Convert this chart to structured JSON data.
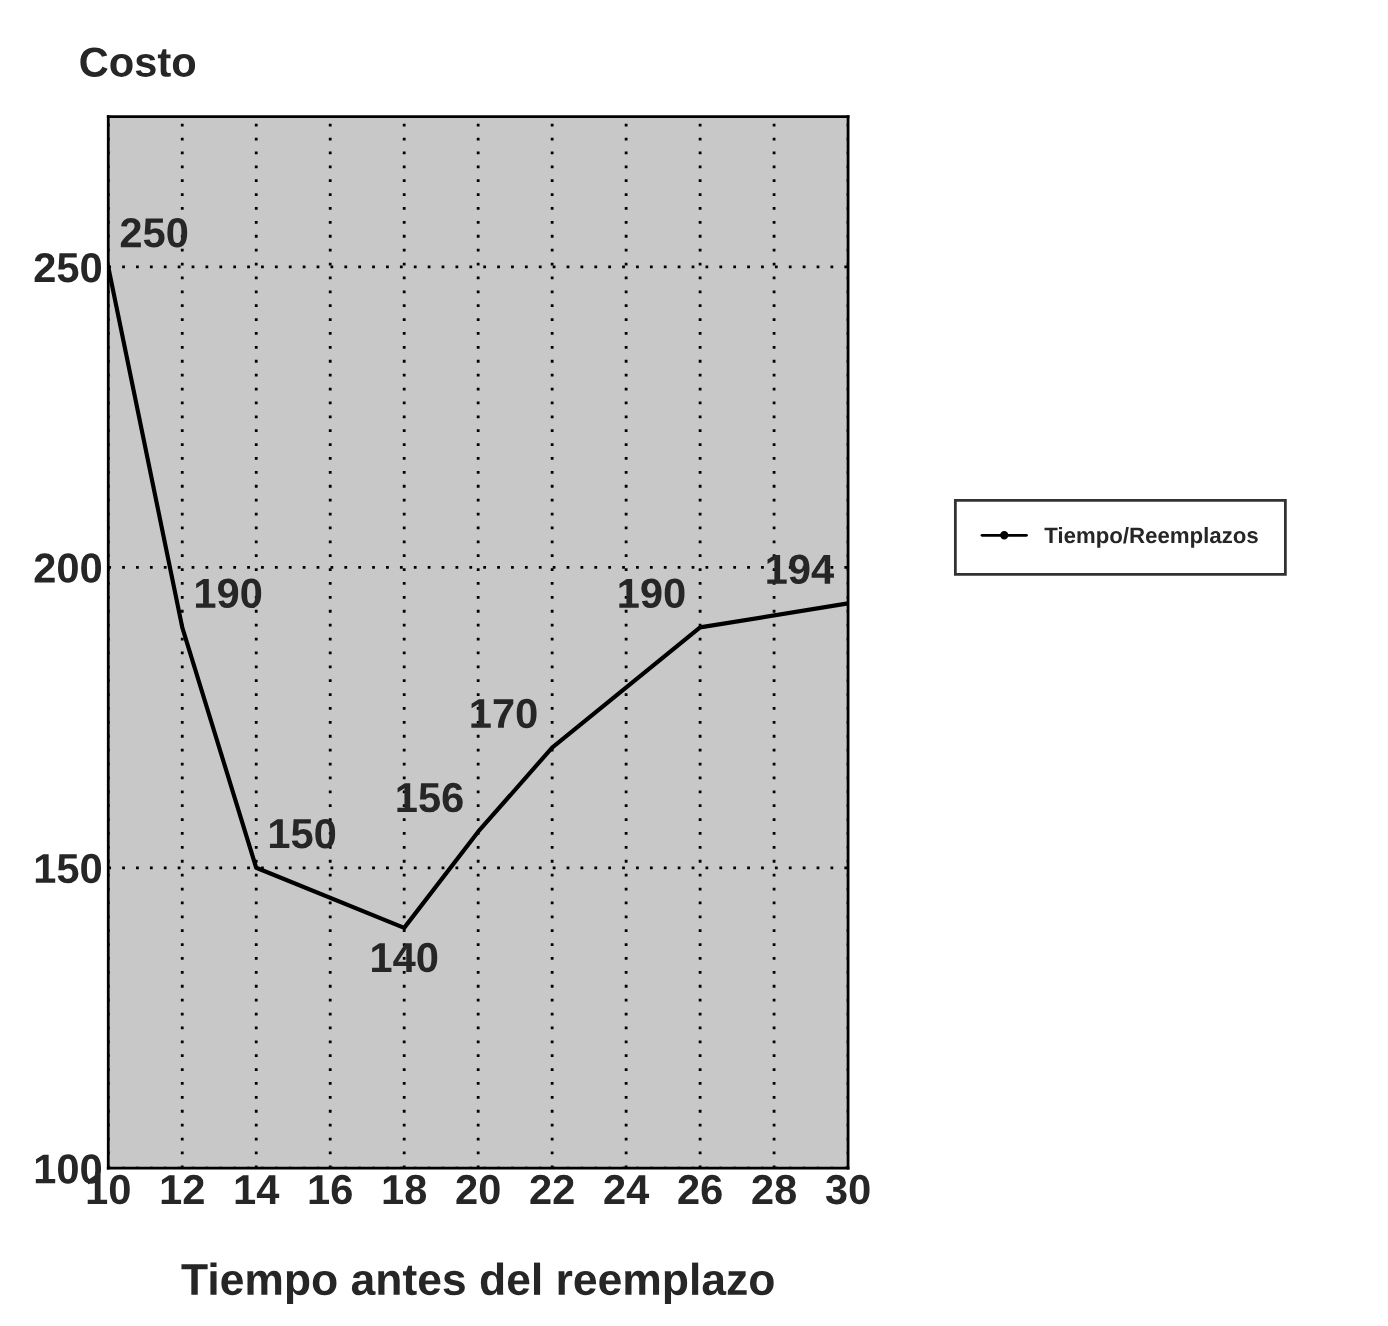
{
  "chart_data": {
    "type": "line",
    "ylabel": "Costo",
    "xlabel": "Tiempo antes del reemplazo",
    "x": [
      10,
      12,
      14,
      18,
      20,
      22,
      26,
      30
    ],
    "series": [
      {
        "name": "Tiempo/Reemplazos",
        "color": "#000000",
        "values": [
          250,
          190,
          150,
          140,
          156,
          170,
          190,
          194
        ]
      }
    ],
    "xlim": [
      10,
      30
    ],
    "ylim": [
      100,
      275
    ],
    "xticks": [
      10,
      12,
      14,
      16,
      18,
      20,
      22,
      24,
      26,
      28,
      30
    ],
    "yticks": [
      100,
      150,
      200,
      250
    ],
    "grid": true,
    "legend": "right",
    "marker": "none",
    "line_style": "solid",
    "data_labels": true
  }
}
